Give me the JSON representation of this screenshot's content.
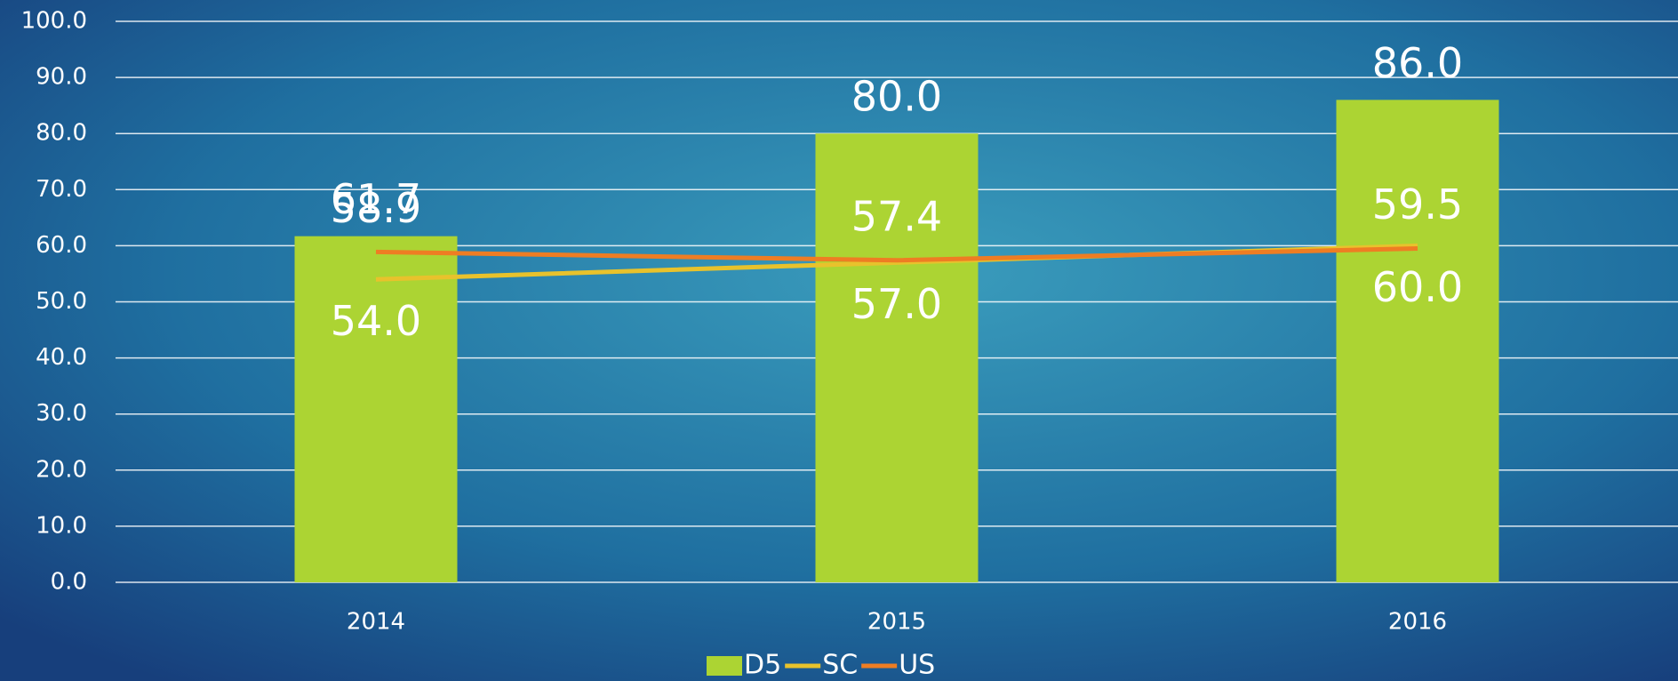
{
  "chart_data": {
    "type": "bar",
    "categories": [
      "2014",
      "2015",
      "2016"
    ],
    "series": [
      {
        "name": "D5",
        "type": "bar",
        "color": "#acd433",
        "values": [
          61.7,
          80,
          86
        ],
        "value_labels": [
          "61.7",
          "80.0",
          "86.0"
        ]
      },
      {
        "name": "SC",
        "type": "line",
        "color": "#e8c22c",
        "values": [
          54,
          57,
          60
        ],
        "value_labels": [
          "54.0",
          "57.0",
          "60.0"
        ]
      },
      {
        "name": "US",
        "type": "line",
        "color": "#ee7d23",
        "values": [
          58.9,
          57.4,
          59.5
        ],
        "value_labels": [
          "58.9",
          "57.4",
          "59.5"
        ]
      }
    ],
    "ylim": [
      0,
      100
    ],
    "yticks": [
      {
        "value": 0,
        "label": "0.0"
      },
      {
        "value": 10,
        "label": "10.0"
      },
      {
        "value": 20,
        "label": "20.0"
      },
      {
        "value": 30,
        "label": "30.0"
      },
      {
        "value": 40,
        "label": "40.0"
      },
      {
        "value": 50,
        "label": "50.0"
      },
      {
        "value": 60,
        "label": "60.0"
      },
      {
        "value": 70,
        "label": "70.0"
      },
      {
        "value": 80,
        "label": "80.0"
      },
      {
        "value": 90,
        "label": "90.0"
      },
      {
        "value": 100,
        "label": "100.0"
      }
    ],
    "grid": true,
    "legend": "bottom"
  }
}
